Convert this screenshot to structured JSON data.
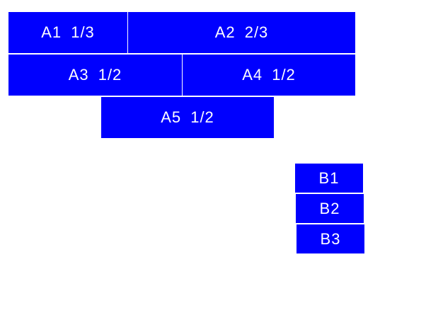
{
  "colors": {
    "box": "#0000fe",
    "text": "#ffffff"
  },
  "group_a": [
    {
      "label": "A1 1/3"
    },
    {
      "label": "A2 2/3"
    },
    {
      "label": "A3 1/2"
    },
    {
      "label": "A4 1/2"
    },
    {
      "label": "A5 1/2"
    }
  ],
  "group_b": [
    {
      "label": "B1"
    },
    {
      "label": "B2"
    },
    {
      "label": "B3"
    }
  ]
}
